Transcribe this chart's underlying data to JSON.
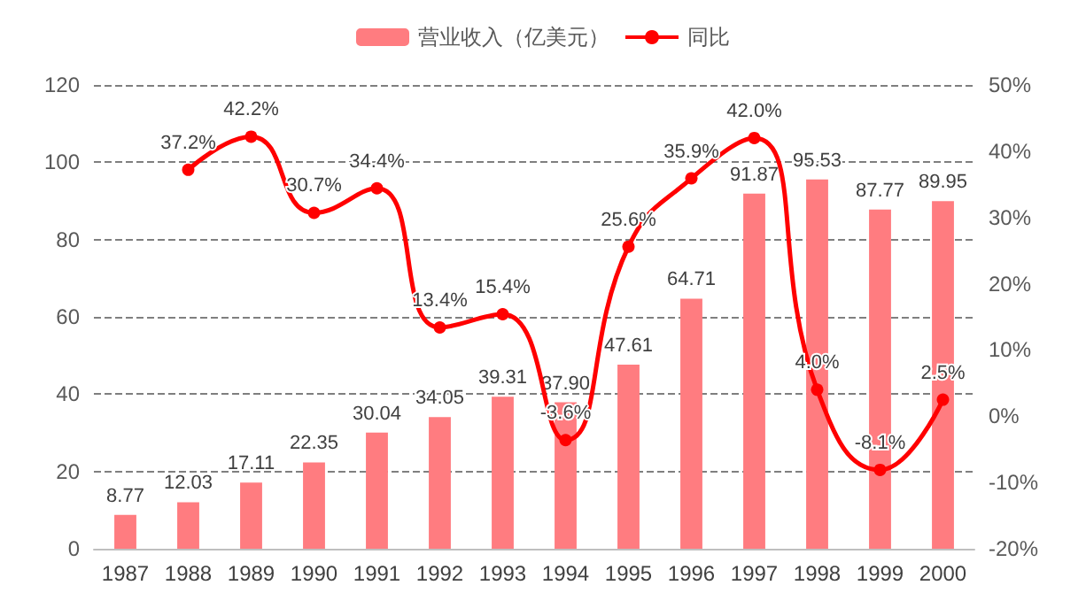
{
  "chart_data": {
    "type": "bar",
    "categories": [
      "1987",
      "1988",
      "1989",
      "1990",
      "1991",
      "1992",
      "1993",
      "1994",
      "1995",
      "1996",
      "1997",
      "1998",
      "1999",
      "2000"
    ],
    "series": [
      {
        "name": "营业收入（亿美元）",
        "color": "#ff7c80",
        "values": [
          8.77,
          12.03,
          17.11,
          22.35,
          30.04,
          34.05,
          39.31,
          37.9,
          47.61,
          64.71,
          91.87,
          95.53,
          87.77,
          89.95
        ],
        "value_labels": [
          "8.77",
          "12.03",
          "17.11",
          "22.35",
          "30.04",
          "34.05",
          "39.31",
          "37.90",
          "47.61",
          "64.71",
          "91.87",
          "95.53",
          "87.77",
          "89.95"
        ]
      },
      {
        "name": "同比",
        "type": "line",
        "axis": "y2",
        "color": "#ff0000",
        "marker": "circle",
        "values": [
          null,
          37.2,
          42.2,
          30.7,
          34.4,
          13.4,
          15.4,
          -3.6,
          25.6,
          35.9,
          42.0,
          4.0,
          -8.1,
          2.5
        ],
        "value_labels": [
          null,
          "37.2%",
          "42.2%",
          "30.7%",
          "34.4%",
          "13.4%",
          "15.4%",
          "-3.6%",
          "25.6%",
          "35.9%",
          "42.0%",
          "4.0%",
          "-8.1%",
          "2.5%"
        ]
      }
    ],
    "ylim": [
      0,
      120
    ],
    "yticks": [
      0,
      20,
      40,
      60,
      80,
      100,
      120
    ],
    "y2lim": [
      -20,
      50
    ],
    "y2ticks": [
      {
        "value": -20,
        "label": "-20%"
      },
      {
        "value": -10,
        "label": "-10%"
      },
      {
        "value": 0,
        "label": "0%"
      },
      {
        "value": 10,
        "label": "10%"
      },
      {
        "value": 20,
        "label": "20%"
      },
      {
        "value": 30,
        "label": "30%"
      },
      {
        "value": 40,
        "label": "40%"
      },
      {
        "value": 50,
        "label": "50%"
      }
    ],
    "grid": "y",
    "legend": "top"
  }
}
